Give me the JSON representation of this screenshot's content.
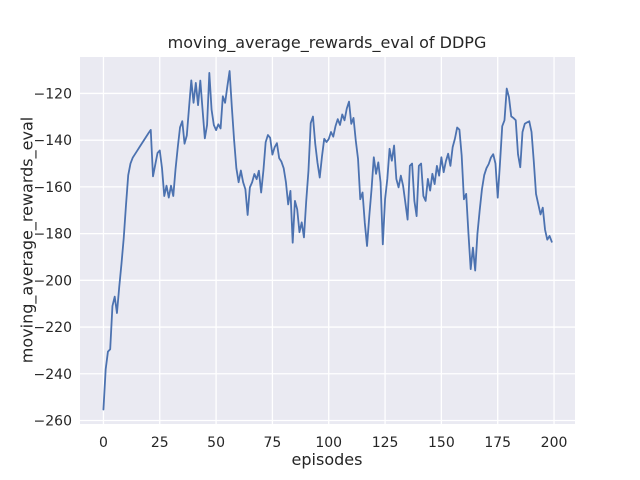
{
  "chart_data": {
    "type": "line",
    "title": "moving_average_rewards_eval of DDPG",
    "xlabel": "episodes",
    "ylabel": "moving_average_rewards_eval",
    "x_ticks": [
      0,
      25,
      50,
      75,
      100,
      125,
      150,
      175,
      200
    ],
    "y_ticks": [
      -120,
      -140,
      -160,
      -180,
      -200,
      -220,
      -240,
      -260
    ],
    "xlim": [
      -10.4,
      209.3
    ],
    "ylim": [
      -261.5,
      -104.4
    ],
    "grid": true,
    "legend": false,
    "colors": {
      "line": "#4c72b0",
      "axes_background": "#eaeaf2",
      "gridline": "#ffffff",
      "text": "#262626"
    },
    "series": [
      {
        "name": "moving_average_rewards_eval",
        "x": {
          "start": 0,
          "step": 1,
          "count": 200
        },
        "y": [
          -255.3,
          -238.0,
          -230.5,
          -229.5,
          -211.0,
          -207.0,
          -214.0,
          -203.0,
          -193.0,
          -182.0,
          -168.0,
          -155.0,
          -150.0,
          -147.5,
          -146.0,
          -144.5,
          -143.0,
          -141.5,
          -140.0,
          -138.5,
          -137.0,
          -135.6,
          -155.5,
          -150.5,
          -145.5,
          -144.4,
          -152.0,
          -163.9,
          -159.5,
          -164.6,
          -159.5,
          -163.9,
          -152.4,
          -143.0,
          -134.5,
          -131.9,
          -141.5,
          -138.0,
          -126.0,
          -114.4,
          -124.0,
          -115.5,
          -125.0,
          -114.5,
          -127.0,
          -139.2,
          -133.5,
          -111.2,
          -127.0,
          -133.5,
          -135.7,
          -133.2,
          -135.0,
          -121.2,
          -124.0,
          -117.0,
          -110.4,
          -126.0,
          -140.0,
          -152.0,
          -158.0,
          -153.0,
          -158.0,
          -161.0,
          -172.0,
          -160.2,
          -158.0,
          -154.5,
          -156.7,
          -153.1,
          -162.4,
          -153.0,
          -140.9,
          -137.8,
          -139.0,
          -146.2,
          -143.0,
          -141.3,
          -147.7,
          -149.2,
          -152.0,
          -158.0,
          -167.5,
          -161.7,
          -183.9,
          -166.0,
          -169.6,
          -179.4,
          -175.2,
          -181.6,
          -166.1,
          -153.1,
          -132.7,
          -129.9,
          -141.5,
          -149.6,
          -156.0,
          -147.0,
          -139.4,
          -140.8,
          -139.5,
          -136.5,
          -138.5,
          -134.0,
          -131.0,
          -133.5,
          -129.0,
          -131.5,
          -126.5,
          -123.5,
          -133.0,
          -130.5,
          -140.2,
          -148.0,
          -165.3,
          -162.4,
          -175.4,
          -185.3,
          -172.5,
          -161.0,
          -147.3,
          -154.4,
          -149.5,
          -158.1,
          -184.6,
          -165.3,
          -156.6,
          -143.7,
          -148.8,
          -142.3,
          -156.6,
          -160.2,
          -155.2,
          -159.5,
          -166.7,
          -174.0,
          -151.0,
          -150.0,
          -166.0,
          -172.5,
          -151.0,
          -150.0,
          -163.9,
          -166.0,
          -156.6,
          -161.6,
          -154.4,
          -158.8,
          -151.0,
          -155.2,
          -147.3,
          -153.7,
          -149.0,
          -145.8,
          -151.0,
          -143.0,
          -139.4,
          -134.6,
          -135.5,
          -146.6,
          -165.3,
          -163.0,
          -179.8,
          -195.2,
          -186.0,
          -195.8,
          -180.0,
          -170.0,
          -161.0,
          -155.0,
          -152.0,
          -150.2,
          -147.4,
          -146.0,
          -150.0,
          -164.6,
          -150.0,
          -134.0,
          -131.5,
          -117.9,
          -121.6,
          -129.8,
          -130.5,
          -131.5,
          -146.0,
          -151.6,
          -136.5,
          -133.0,
          -132.4,
          -131.9,
          -136.5,
          -149.0,
          -163.0,
          -167.4,
          -171.8,
          -168.9,
          -178.3,
          -182.6,
          -181.0,
          -183.5
        ]
      }
    ]
  }
}
